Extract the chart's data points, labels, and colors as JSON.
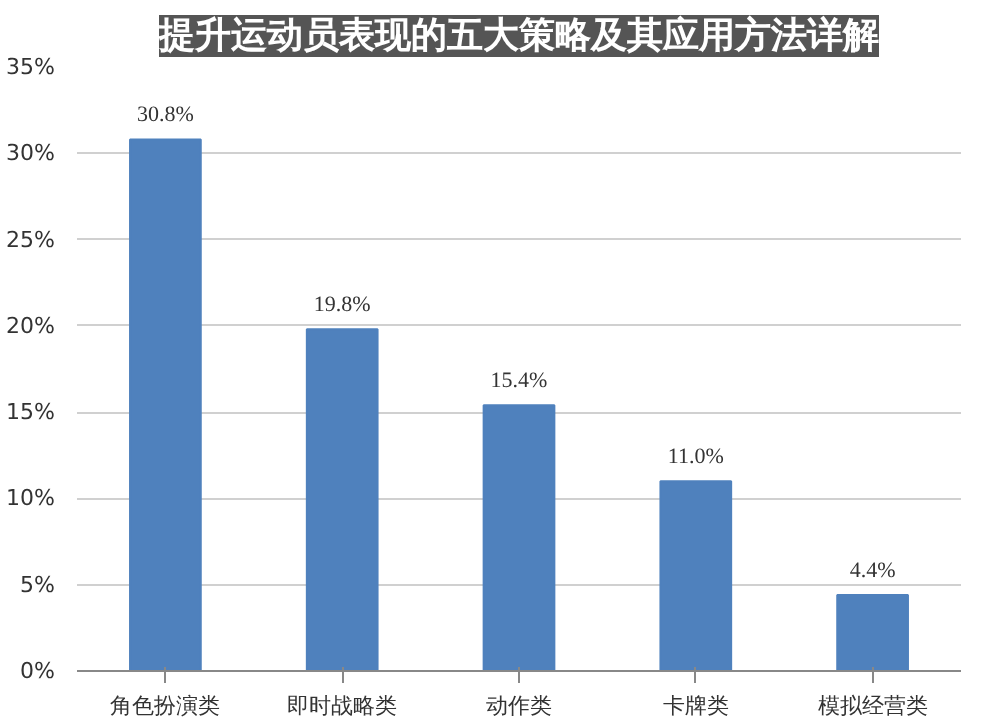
{
  "chart_data": {
    "type": "bar",
    "title": "提升运动员表现的五大策略及其应用方法详解",
    "categories": [
      "角色扮演类",
      "即时战略类",
      "动作类",
      "卡牌类",
      "模拟经营类"
    ],
    "values": [
      30.8,
      19.8,
      15.4,
      11.0,
      4.4
    ],
    "value_labels": [
      "30.8%",
      "19.8%",
      "15.4%",
      "11.0%",
      "4.4%"
    ],
    "color": "#4f81bd",
    "ylim": [
      0,
      35
    ],
    "yticks": [
      {
        "value": 0,
        "label": "0%"
      },
      {
        "value": 5,
        "label": "5%"
      },
      {
        "value": 10,
        "label": "10%"
      },
      {
        "value": 15,
        "label": "15%"
      },
      {
        "value": 20,
        "label": "20%"
      },
      {
        "value": 25,
        "label": "25%"
      },
      {
        "value": 30,
        "label": "30%"
      },
      {
        "value": 35,
        "label": "35%"
      }
    ],
    "grid": "y"
  }
}
